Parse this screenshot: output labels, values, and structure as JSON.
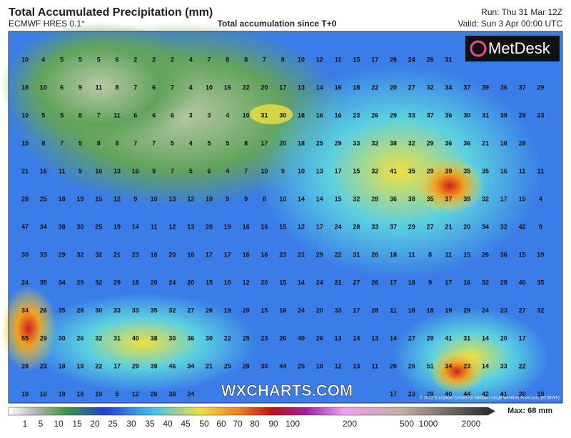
{
  "header": {
    "title": "Total Accumulated Precipitation (mm)",
    "model": "ECMWF HRES 0.1°",
    "subtitle": "Total accumulation since T+0",
    "run": "Run: Thu 31 Mar 12Z",
    "valid": "Valid: Sun 3 Apr 00:00 UTC"
  },
  "map": {
    "logo": "MetDesk",
    "watermark": "WXCHARTS.COM",
    "copyright": "© 2022 European Centre for Medium-range Weather Forecasts (ECMWF)",
    "grid": [
      [
        10,
        4,
        5,
        5,
        5,
        6,
        2,
        2,
        2,
        4,
        7,
        8,
        8,
        7,
        8,
        10,
        12,
        11,
        15,
        17,
        26,
        24,
        26,
        31,
        null,
        null,
        null,
        null,
        null
      ],
      [
        18,
        10,
        6,
        9,
        11,
        8,
        7,
        6,
        7,
        4,
        10,
        16,
        22,
        20,
        17,
        13,
        14,
        16,
        18,
        22,
        20,
        27,
        32,
        34,
        37,
        39,
        36,
        37,
        29
      ],
      [
        10,
        5,
        5,
        8,
        7,
        11,
        6,
        6,
        6,
        3,
        3,
        4,
        10,
        31,
        30,
        18,
        16,
        16,
        23,
        26,
        29,
        33,
        37,
        36,
        30,
        31,
        38,
        29,
        23
      ],
      [
        15,
        8,
        7,
        5,
        8,
        8,
        7,
        7,
        5,
        4,
        5,
        5,
        8,
        17,
        20,
        18,
        25,
        29,
        33,
        32,
        38,
        32,
        29,
        36,
        36,
        21,
        18,
        28
      ],
      [
        21,
        16,
        11,
        9,
        10,
        13,
        16,
        9,
        7,
        5,
        6,
        4,
        7,
        10,
        9,
        10,
        13,
        17,
        15,
        32,
        41,
        35,
        29,
        39,
        35,
        35,
        16,
        11,
        11
      ],
      [
        28,
        25,
        18,
        19,
        15,
        12,
        9,
        10,
        13,
        12,
        10,
        9,
        9,
        8,
        10,
        14,
        14,
        15,
        32,
        28,
        36,
        38,
        35,
        37,
        39,
        32,
        17,
        15,
        4
      ],
      [
        47,
        34,
        38,
        30,
        25,
        19,
        14,
        11,
        12,
        13,
        20,
        19,
        16,
        16,
        15,
        12,
        17,
        24,
        28,
        33,
        37,
        29,
        27,
        21,
        20,
        34,
        32,
        42,
        9
      ],
      [
        30,
        33,
        29,
        32,
        32,
        21,
        23,
        16,
        20,
        16,
        17,
        17,
        16,
        16,
        23,
        21,
        29,
        22,
        31,
        26,
        18,
        11,
        8,
        11,
        15,
        26,
        36,
        15,
        19
      ],
      [
        24,
        35,
        34,
        29,
        32,
        29,
        18,
        20,
        24,
        20,
        15,
        10,
        12,
        20,
        15,
        14,
        24,
        21,
        27,
        26,
        17,
        18,
        9,
        17,
        16,
        32,
        28,
        40,
        35
      ],
      [
        34,
        26,
        35,
        28,
        30,
        33,
        33,
        35,
        32,
        27,
        26,
        19,
        20,
        15,
        16,
        24,
        20,
        33,
        17,
        28,
        11,
        18,
        18,
        19,
        29,
        24,
        23,
        27,
        32
      ],
      [
        55,
        29,
        30,
        26,
        32,
        31,
        40,
        38,
        30,
        36,
        30,
        22,
        25,
        23,
        26,
        40,
        26,
        13,
        14,
        13,
        14,
        27,
        29,
        41,
        31,
        14,
        20,
        17
      ],
      [
        28,
        23,
        18,
        19,
        22,
        17,
        29,
        39,
        46,
        34,
        21,
        25,
        28,
        30,
        44,
        25,
        10,
        12,
        13,
        11,
        20,
        25,
        51,
        34,
        23,
        14,
        33,
        22
      ],
      [
        10,
        10,
        18,
        18,
        19,
        5,
        12,
        26,
        38,
        24,
        null,
        null,
        null,
        null,
        null,
        null,
        null,
        null,
        null,
        null,
        17,
        23,
        29,
        40,
        44,
        42,
        41,
        20,
        19
      ]
    ]
  },
  "colorbar": {
    "labels": [
      1,
      5,
      10,
      15,
      20,
      25,
      30,
      35,
      40,
      45,
      50,
      60,
      70,
      80,
      90,
      100,
      200,
      500,
      1000,
      2000
    ],
    "max": "Max: 68 mm"
  }
}
